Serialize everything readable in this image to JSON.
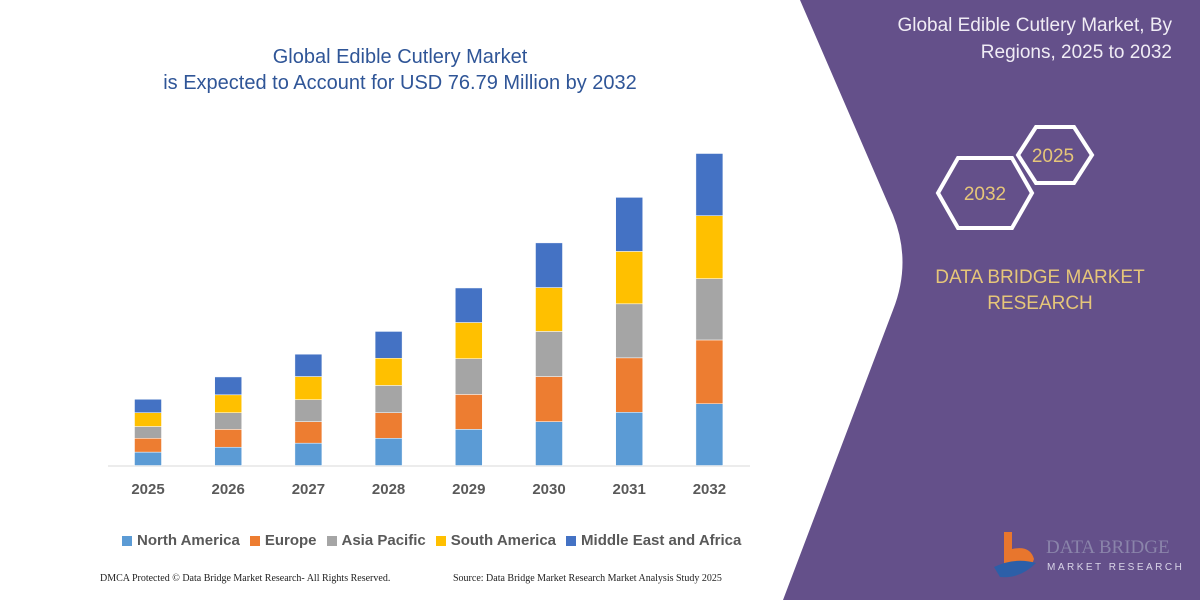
{
  "title": {
    "line1": "Global Edible Cutlery Market",
    "line2": "is Expected to Account for USD 76.79 Million by 2032"
  },
  "side_panel": {
    "title_line1": "Global Edible Cutlery Market, By",
    "title_line2": "Regions, 2025 to 2032",
    "hex_a": "2025",
    "hex_b": "2032",
    "brand_line1": "DATA BRIDGE MARKET",
    "brand_line2": "RESEARCH",
    "logo_text": "DATA BRIDGE",
    "logo_subtext": "MARKET RESEARCH",
    "panel_color": "#64508a",
    "accent_color": "#e6c679"
  },
  "footer": {
    "left": "DMCA Protected © Data Bridge Market Research-  All Rights Reserved.",
    "right": "Source: Data Bridge Market Research  Market Analysis Study 2025"
  },
  "chart_data": {
    "type": "bar",
    "stacked": true,
    "categories": [
      "2025",
      "2026",
      "2027",
      "2028",
      "2029",
      "2030",
      "2031",
      "2032"
    ],
    "series": [
      {
        "name": "North America",
        "color": "#5b9bd5",
        "values": [
          3.3,
          4.5,
          5.5,
          6.7,
          8.9,
          10.8,
          13.1,
          15.2
        ]
      },
      {
        "name": "Europe",
        "color": "#ed7d31",
        "values": [
          3.4,
          4.4,
          5.3,
          6.3,
          8.6,
          11.1,
          13.4,
          15.7
        ]
      },
      {
        "name": "Asia Pacific",
        "color": "#a5a5a5",
        "values": [
          2.9,
          4.1,
          5.4,
          6.7,
          8.8,
          11.1,
          13.3,
          15.1
        ]
      },
      {
        "name": "South America",
        "color": "#ffc000",
        "values": [
          3.4,
          4.4,
          5.7,
          6.7,
          8.9,
          10.8,
          12.9,
          15.5
        ]
      },
      {
        "name": "Middle East and Africa",
        "color": "#4472c4",
        "values": [
          3.3,
          4.4,
          5.5,
          6.6,
          8.5,
          11.0,
          13.3,
          15.3
        ]
      }
    ],
    "ylim": [
      0,
      77
    ],
    "grid": false,
    "legend": "bottom"
  }
}
